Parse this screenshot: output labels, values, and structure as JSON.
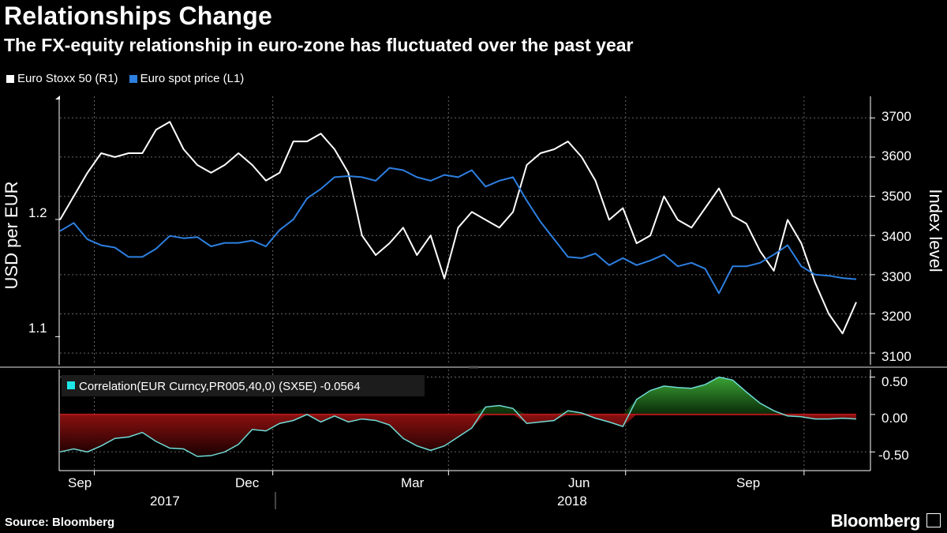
{
  "title": "Relationships Change",
  "subtitle": "The FX-equity relationship in euro-zone has fluctuated over the past year",
  "legend": [
    {
      "label": "Euro Stoxx 50 (R1)",
      "color": "#ffffff"
    },
    {
      "label": "Euro spot price (L1)",
      "color": "#2d7fe0"
    }
  ],
  "source": "Source: Bloomberg",
  "brand": "Bloomberg",
  "correlation_label": "Correlation(EUR Curncy,PR005,40,0) (SX5E) -0.0564",
  "colors": {
    "stoxx": "#ffffff",
    "euro": "#2d7fe0",
    "corr_line": "#6fdcd6",
    "corr_pos": "#2e8b2a",
    "corr_neg": "#a01818",
    "grid": "#666666",
    "zero_line": "#b01818"
  },
  "chart_data": [
    {
      "type": "line",
      "title": "Relationships Change",
      "x_label_months": [
        "Sep",
        "Dec",
        "Mar",
        "Jun",
        "Sep"
      ],
      "x_label_years": [
        "2017",
        "2018"
      ],
      "left_axis": {
        "label": "USD per EUR",
        "ticks": [
          1.1,
          1.2
        ],
        "tick_labels": [
          "1.1",
          "1.2"
        ],
        "range": [
          1.076,
          1.305
        ]
      },
      "right_axis": {
        "label": "Index level",
        "ticks": [
          3100,
          3200,
          3300,
          3400,
          3500,
          3600,
          3700
        ],
        "range": [
          3070,
          3755
        ]
      },
      "x_range_weeks": [
        0,
        58
      ],
      "series": [
        {
          "name": "Euro Stoxx 50 (R1)",
          "axis": "right",
          "x": [
            0,
            1,
            2,
            3,
            4,
            5,
            6,
            7,
            8,
            9,
            10,
            11,
            12,
            13,
            14,
            15,
            16,
            17,
            18,
            19,
            20,
            21,
            22,
            23,
            24,
            25,
            26,
            27,
            28,
            29,
            30,
            31,
            32,
            33,
            34,
            35,
            36,
            37,
            38,
            39,
            40,
            41,
            42,
            43,
            44,
            45,
            46,
            47,
            48,
            49,
            50,
            51,
            52,
            53,
            54,
            55,
            56,
            57,
            58
          ],
          "values": [
            3440,
            3500,
            3560,
            3610,
            3600,
            3610,
            3610,
            3670,
            3690,
            3620,
            3580,
            3560,
            3580,
            3610,
            3580,
            3540,
            3560,
            3640,
            3640,
            3660,
            3620,
            3560,
            3400,
            3350,
            3380,
            3420,
            3350,
            3400,
            3290,
            3420,
            3460,
            3440,
            3420,
            3460,
            3580,
            3610,
            3620,
            3640,
            3600,
            3540,
            3440,
            3470,
            3380,
            3400,
            3500,
            3440,
            3420,
            3470,
            3520,
            3450,
            3430,
            3360,
            3310,
            3440,
            3380,
            3280,
            3200,
            3150,
            3230
          ]
        },
        {
          "name": "Euro spot price (L1)",
          "axis": "left",
          "x": [
            0,
            1,
            2,
            3,
            4,
            5,
            6,
            7,
            8,
            9,
            10,
            11,
            12,
            13,
            14,
            15,
            16,
            17,
            18,
            19,
            20,
            21,
            22,
            23,
            24,
            25,
            26,
            27,
            28,
            29,
            30,
            31,
            32,
            33,
            34,
            35,
            36,
            37,
            38,
            39,
            40,
            41,
            42,
            43,
            44,
            45,
            46,
            47,
            48,
            49,
            50,
            51,
            52,
            53,
            54,
            55,
            56,
            57,
            58
          ],
          "values": [
            1.19,
            1.197,
            1.183,
            1.178,
            1.176,
            1.168,
            1.168,
            1.175,
            1.186,
            1.184,
            1.185,
            1.177,
            1.18,
            1.18,
            1.182,
            1.177,
            1.191,
            1.2,
            1.218,
            1.226,
            1.236,
            1.237,
            1.236,
            1.233,
            1.244,
            1.242,
            1.236,
            1.233,
            1.238,
            1.236,
            1.242,
            1.228,
            1.233,
            1.236,
            1.216,
            1.198,
            1.183,
            1.168,
            1.167,
            1.171,
            1.161,
            1.167,
            1.161,
            1.165,
            1.17,
            1.16,
            1.163,
            1.158,
            1.137,
            1.16,
            1.16,
            1.163,
            1.17,
            1.178,
            1.16,
            1.153,
            1.152,
            1.15,
            1.149
          ]
        }
      ]
    },
    {
      "type": "area",
      "title": "Correlation(EUR Curncy,PR005,40,0) (SX5E) -0.0564",
      "axis": {
        "ticks": [
          -0.5,
          0.0,
          0.5
        ],
        "tick_labels": [
          "-0.50",
          "0.00",
          "0.50"
        ],
        "range": [
          -0.75,
          0.6
        ]
      },
      "x_range_weeks": [
        0,
        58
      ],
      "series": [
        {
          "name": "Correlation",
          "x": [
            0,
            1,
            2,
            3,
            4,
            5,
            6,
            7,
            8,
            9,
            10,
            11,
            12,
            13,
            14,
            15,
            16,
            17,
            18,
            19,
            20,
            21,
            22,
            23,
            24,
            25,
            26,
            27,
            28,
            29,
            30,
            31,
            32,
            33,
            34,
            35,
            36,
            37,
            38,
            39,
            40,
            41,
            42,
            43,
            44,
            45,
            46,
            47,
            48,
            49,
            50,
            51,
            52,
            53,
            54,
            55,
            56,
            57,
            58
          ],
          "values": [
            -0.5,
            -0.46,
            -0.5,
            -0.42,
            -0.32,
            -0.3,
            -0.24,
            -0.36,
            -0.45,
            -0.46,
            -0.56,
            -0.55,
            -0.5,
            -0.4,
            -0.2,
            -0.22,
            -0.12,
            -0.08,
            0.0,
            -0.1,
            -0.02,
            -0.1,
            -0.06,
            -0.08,
            -0.14,
            -0.32,
            -0.42,
            -0.48,
            -0.42,
            -0.3,
            -0.18,
            0.1,
            0.12,
            0.08,
            -0.12,
            -0.1,
            -0.08,
            0.05,
            0.02,
            -0.05,
            -0.1,
            -0.16,
            0.2,
            0.32,
            0.38,
            0.36,
            0.35,
            0.4,
            0.5,
            0.46,
            0.3,
            0.15,
            0.05,
            -0.02,
            -0.03,
            -0.06,
            -0.06,
            -0.05,
            -0.06
          ]
        }
      ]
    }
  ]
}
